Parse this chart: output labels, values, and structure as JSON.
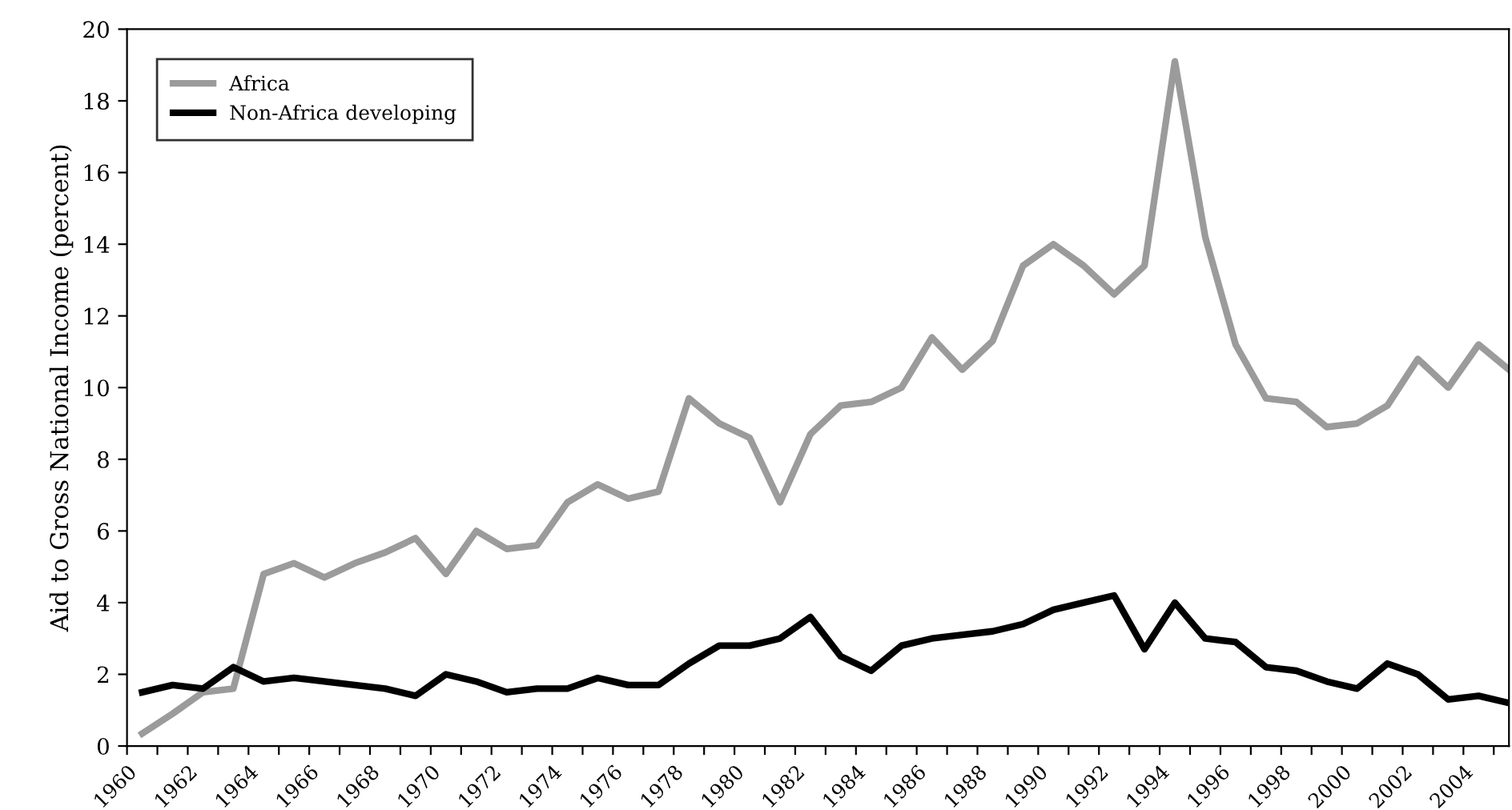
{
  "chart_data": {
    "type": "line",
    "ylabel": "Aid to Gross National Income (percent)",
    "x": [
      1960.5,
      1961.5,
      1962.5,
      1963.5,
      1964.5,
      1965.5,
      1966.5,
      1967.5,
      1968.5,
      1969.5,
      1970.5,
      1971.5,
      1972.5,
      1973.5,
      1974.5,
      1975.5,
      1976.5,
      1977.5,
      1978.5,
      1979.5,
      1980.5,
      1981.5,
      1982.5,
      1983.5,
      1984.5,
      1985.5,
      1986.5,
      1987.5,
      1988.5,
      1989.5,
      1990.5,
      1991.5,
      1992.5,
      1993.5,
      1994.5,
      1995.5,
      1996.5,
      1997.5,
      1998.5,
      1999.5,
      2000.5,
      2001.5,
      2002.5,
      2003.5,
      2004.5,
      2005.5
    ],
    "series": [
      {
        "name": "Africa",
        "color": "#9b9b9b",
        "values": [
          0.35,
          0.9,
          1.5,
          1.6,
          4.8,
          5.1,
          4.7,
          5.1,
          5.4,
          5.8,
          4.8,
          6.0,
          5.5,
          5.6,
          6.8,
          7.3,
          6.9,
          7.1,
          9.7,
          9.0,
          8.6,
          6.8,
          8.7,
          9.5,
          9.6,
          10.0,
          11.4,
          10.5,
          11.3,
          13.4,
          14.0,
          13.4,
          12.6,
          13.4,
          19.1,
          14.2,
          11.2,
          9.7,
          9.6,
          8.9,
          9.0,
          9.5,
          10.8,
          10.0,
          11.2,
          10.5
        ]
      },
      {
        "name": "Non-Africa developing",
        "color": "#000000",
        "values": [
          1.5,
          1.7,
          1.6,
          2.2,
          1.8,
          1.9,
          1.8,
          1.7,
          1.6,
          1.4,
          2.0,
          1.8,
          1.5,
          1.6,
          1.6,
          1.9,
          1.7,
          1.7,
          2.3,
          2.8,
          2.8,
          3.0,
          3.6,
          2.5,
          2.1,
          2.8,
          3.0,
          3.1,
          3.2,
          3.4,
          3.8,
          4.0,
          4.2,
          2.7,
          4.0,
          3.0,
          2.9,
          2.2,
          2.1,
          1.8,
          1.6,
          2.3,
          2.0,
          1.3,
          1.4,
          1.2
        ]
      }
    ],
    "xlim": [
      1960,
      2005.5
    ],
    "xticks": [
      1960,
      {
        "value": 1961,
        "label": null
      },
      1962,
      {
        "value": 1963,
        "label": null
      },
      1964,
      {
        "value": 1965,
        "label": null
      },
      1966,
      {
        "value": 1967,
        "label": null
      },
      1968,
      {
        "value": 1969,
        "label": null
      },
      1970,
      {
        "value": 1971,
        "label": null
      },
      1972,
      {
        "value": 1973,
        "label": null
      },
      1974,
      {
        "value": 1975,
        "label": null
      },
      1976,
      {
        "value": 1977,
        "label": null
      },
      1978,
      {
        "value": 1979,
        "label": null
      },
      1980,
      {
        "value": 1981,
        "label": null
      },
      1982,
      {
        "value": 1983,
        "label": null
      },
      1984,
      {
        "value": 1985,
        "label": null
      },
      1986,
      {
        "value": 1987,
        "label": null
      },
      1988,
      {
        "value": 1989,
        "label": null
      },
      1990,
      {
        "value": 1991,
        "label": null
      },
      1992,
      {
        "value": 1993,
        "label": null
      },
      1994,
      {
        "value": 1995,
        "label": null
      },
      1996,
      {
        "value": 1997,
        "label": null
      },
      1998,
      {
        "value": 1999,
        "label": null
      },
      2000,
      {
        "value": 2001,
        "label": null
      },
      2002,
      {
        "value": 2003,
        "label": null
      },
      2004,
      {
        "value": 2005,
        "label": null
      }
    ],
    "ylim": [
      0,
      20
    ],
    "yticks": [
      0,
      2,
      4,
      6,
      8,
      10,
      12,
      14,
      16,
      18,
      20
    ],
    "grid": false,
    "legend": "top left",
    "marker": "none",
    "line_style": "solid"
  }
}
